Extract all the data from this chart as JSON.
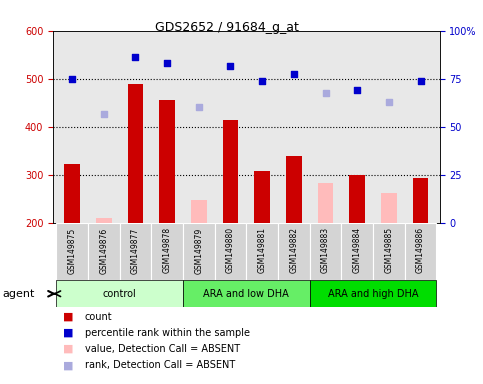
{
  "title": "GDS2652 / 91684_g_at",
  "samples": [
    "GSM149875",
    "GSM149876",
    "GSM149877",
    "GSM149878",
    "GSM149879",
    "GSM149880",
    "GSM149881",
    "GSM149882",
    "GSM149883",
    "GSM149884",
    "GSM149885",
    "GSM149886"
  ],
  "groups": [
    {
      "name": "control",
      "color": "#ccffcc",
      "indices": [
        0,
        1,
        2,
        3
      ]
    },
    {
      "name": "ARA and low DHA",
      "color": "#66ee66",
      "indices": [
        4,
        5,
        6,
        7
      ]
    },
    {
      "name": "ARA and high DHA",
      "color": "#00dd00",
      "indices": [
        8,
        9,
        10,
        11
      ]
    }
  ],
  "bar_color_present": "#cc0000",
  "bar_color_absent": "#ffbbbb",
  "scatter_color_present": "#0000cc",
  "scatter_color_absent": "#aaaadd",
  "absent_mask": [
    false,
    true,
    false,
    false,
    true,
    false,
    false,
    false,
    true,
    false,
    true,
    false
  ],
  "bar_values": [
    323,
    210,
    490,
    455,
    247,
    413,
    307,
    338,
    283,
    300,
    261,
    293
  ],
  "scatter_values": [
    500,
    427,
    546,
    532,
    441,
    527,
    495,
    510,
    471,
    477,
    452,
    495
  ],
  "ylim_left": [
    200,
    600
  ],
  "ylim_right": [
    0,
    100
  ],
  "yticks_left": [
    200,
    300,
    400,
    500,
    600
  ],
  "yticks_right": [
    0,
    25,
    50,
    75,
    100
  ],
  "grid_lines": [
    300,
    400,
    500
  ],
  "plot_bg_color": "#e8e8e8",
  "label_color_left": "#cc0000",
  "label_color_right": "#0000cc",
  "agent_label": "agent",
  "legend_items": [
    {
      "color": "#cc0000",
      "label": "count"
    },
    {
      "color": "#0000cc",
      "label": "percentile rank within the sample"
    },
    {
      "color": "#ffbbbb",
      "label": "value, Detection Call = ABSENT"
    },
    {
      "color": "#aaaadd",
      "label": "rank, Detection Call = ABSENT"
    }
  ]
}
